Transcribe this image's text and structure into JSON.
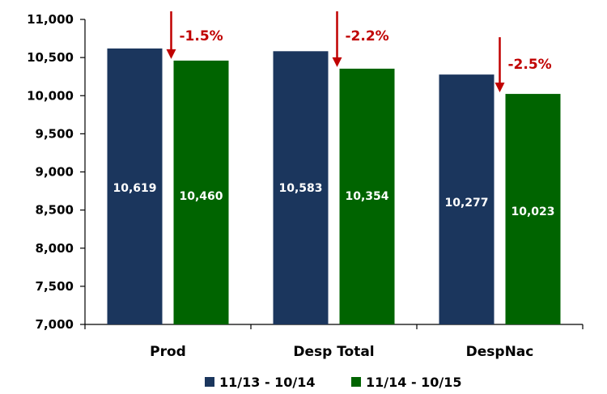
{
  "colors": {
    "series_1": "#1b365d",
    "series_2": "#006400",
    "arrow": "#c00000",
    "axis": "#000000"
  },
  "chart_data": {
    "type": "bar",
    "categories": [
      "Prod",
      "Desp Total",
      "DespNac"
    ],
    "series": [
      {
        "name": "11/13 - 10/14",
        "values": [
          10619,
          10583,
          10277
        ]
      },
      {
        "name": "11/14 - 10/15",
        "values": [
          10460,
          10354,
          10023
        ]
      }
    ],
    "data_labels": [
      [
        "10,619",
        "10,583",
        "10,277"
      ],
      [
        "10,460",
        "10,354",
        "10,023"
      ]
    ],
    "changes": [
      "-1.5%",
      "-2.2%",
      "-2.5%"
    ],
    "ylim": [
      7000,
      11000
    ],
    "yticks": [
      7000,
      7500,
      8000,
      8500,
      9000,
      9500,
      10000,
      10500,
      11000
    ],
    "ytick_labels": [
      "7,000",
      "7,500",
      "8,000",
      "8,500",
      "9,000",
      "9,500",
      "10,000",
      "10,500",
      "11,000"
    ],
    "title": "",
    "xlabel": "",
    "ylabel": "",
    "grid": false,
    "legend_position": "bottom"
  }
}
